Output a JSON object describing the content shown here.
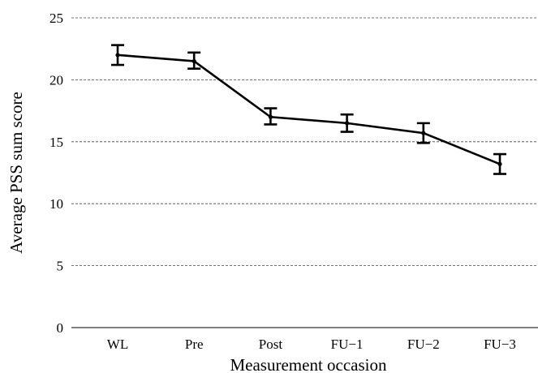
{
  "chart_data": {
    "type": "line",
    "xlabel": "Measurement occasion",
    "ylabel": "Average PSS sum score",
    "categories": [
      "WL",
      "Pre",
      "Post",
      "FU−1",
      "FU−2",
      "FU−3"
    ],
    "series": [
      {
        "values": [
          22.0,
          21.5,
          17.0,
          16.5,
          15.7,
          13.2
        ],
        "error_low": [
          21.2,
          20.9,
          16.4,
          15.8,
          14.9,
          12.4
        ],
        "error_high": [
          22.8,
          22.2,
          17.7,
          17.2,
          16.5,
          14.0
        ]
      }
    ],
    "ylim": [
      0,
      25
    ],
    "yticks": [
      0,
      5,
      10,
      15,
      20,
      25
    ],
    "grid": "horizontal dashed",
    "color": "#000000"
  }
}
